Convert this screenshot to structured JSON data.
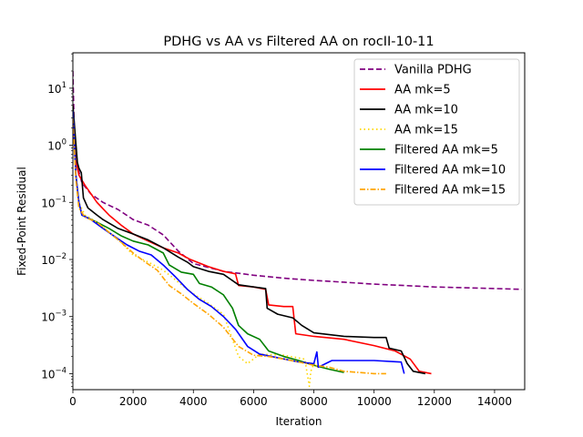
{
  "chart_data": {
    "type": "line",
    "title": "PDHG vs AA vs Filtered AA on rocII-10-11",
    "xlabel": "Iteration",
    "ylabel": "Fixed-Point Residual",
    "xlim": [
      0,
      15000
    ],
    "ylim_log10": [
      -4.28,
      1.62
    ],
    "yscale": "log",
    "x_ticks": [
      0,
      2000,
      4000,
      6000,
      8000,
      10000,
      12000,
      14000
    ],
    "x_tick_labels": [
      "0",
      "2000",
      "4000",
      "6000",
      "8000",
      "10000",
      "12000",
      "14000"
    ],
    "y_ticks_exp": [
      -4,
      -3,
      -2,
      -1,
      0,
      1
    ],
    "y_tick_base": "10",
    "legend_position": "top-right",
    "series": [
      {
        "name": "Vanilla PDHG",
        "color": "#800080",
        "style": "dashed",
        "points": [
          [
            0,
            20
          ],
          [
            50,
            1.5
          ],
          [
            120,
            0.5
          ],
          [
            300,
            0.22
          ],
          [
            600,
            0.14
          ],
          [
            1000,
            0.1
          ],
          [
            1500,
            0.075
          ],
          [
            2000,
            0.05
          ],
          [
            2500,
            0.04
          ],
          [
            3000,
            0.027
          ],
          [
            3500,
            0.014
          ],
          [
            4000,
            0.0085
          ],
          [
            5000,
            0.0062
          ],
          [
            6000,
            0.0053
          ],
          [
            7000,
            0.0047
          ],
          [
            8000,
            0.0043
          ],
          [
            9000,
            0.004
          ],
          [
            10000,
            0.0037
          ],
          [
            11000,
            0.0035
          ],
          [
            12000,
            0.0033
          ],
          [
            13000,
            0.0032
          ],
          [
            14000,
            0.0031
          ],
          [
            14900,
            0.003
          ]
        ]
      },
      {
        "name": "AA mk=5",
        "color": "#ff0000",
        "style": "solid",
        "points": [
          [
            0,
            5
          ],
          [
            80,
            0.6
          ],
          [
            200,
            0.3
          ],
          [
            400,
            0.2
          ],
          [
            800,
            0.1
          ],
          [
            1200,
            0.06
          ],
          [
            1600,
            0.04
          ],
          [
            2000,
            0.028
          ],
          [
            2500,
            0.021
          ],
          [
            3000,
            0.016
          ],
          [
            3500,
            0.013
          ],
          [
            3900,
            0.01
          ],
          [
            4500,
            0.0075
          ],
          [
            5000,
            0.0062
          ],
          [
            5400,
            0.0056
          ],
          [
            5500,
            0.0035
          ],
          [
            6000,
            0.0033
          ],
          [
            6400,
            0.003
          ],
          [
            6500,
            0.0016
          ],
          [
            7000,
            0.0015
          ],
          [
            7300,
            0.0015
          ],
          [
            7400,
            0.0005
          ],
          [
            8000,
            0.00045
          ],
          [
            9000,
            0.0004
          ],
          [
            10000,
            0.00031
          ],
          [
            10700,
            0.00025
          ],
          [
            11200,
            0.00018
          ],
          [
            11500,
            0.00011
          ],
          [
            11900,
            0.0001
          ]
        ]
      },
      {
        "name": "AA mk=10",
        "color": "#000000",
        "style": "solid",
        "points": [
          [
            0,
            5
          ],
          [
            60,
            2
          ],
          [
            150,
            0.5
          ],
          [
            200,
            0.4
          ],
          [
            280,
            0.33
          ],
          [
            350,
            0.12
          ],
          [
            500,
            0.08
          ],
          [
            800,
            0.06
          ],
          [
            1000,
            0.05
          ],
          [
            1500,
            0.035
          ],
          [
            2000,
            0.028
          ],
          [
            2500,
            0.022
          ],
          [
            3000,
            0.016
          ],
          [
            3500,
            0.011
          ],
          [
            3800,
            0.009
          ],
          [
            4000,
            0.0075
          ],
          [
            4500,
            0.0062
          ],
          [
            5000,
            0.0055
          ],
          [
            5500,
            0.0036
          ],
          [
            6000,
            0.0033
          ],
          [
            6400,
            0.0031
          ],
          [
            6450,
            0.0014
          ],
          [
            6800,
            0.0011
          ],
          [
            7300,
            0.00095
          ],
          [
            7600,
            0.0007
          ],
          [
            8000,
            0.00052
          ],
          [
            9000,
            0.00045
          ],
          [
            10000,
            0.00043
          ],
          [
            10400,
            0.00043
          ],
          [
            10500,
            0.00028
          ],
          [
            10900,
            0.00025
          ],
          [
            11100,
            0.00015
          ],
          [
            11300,
            0.00011
          ],
          [
            11700,
            0.0001
          ]
        ]
      },
      {
        "name": "AA mk=15",
        "color": "#ffd700",
        "style": "dotted",
        "points": [
          [
            0,
            3
          ],
          [
            100,
            0.3
          ],
          [
            200,
            0.1
          ],
          [
            400,
            0.06
          ],
          [
            800,
            0.045
          ],
          [
            1200,
            0.03
          ],
          [
            1600,
            0.02
          ],
          [
            2000,
            0.012
          ],
          [
            2500,
            0.009
          ],
          [
            3000,
            0.0065
          ],
          [
            3500,
            0.004
          ],
          [
            4000,
            0.0025
          ],
          [
            4500,
            0.0017
          ],
          [
            5000,
            0.0011
          ],
          [
            5500,
            0.0002
          ],
          [
            5800,
            0.00015
          ],
          [
            6200,
            0.00022
          ],
          [
            7000,
            0.00021
          ],
          [
            7700,
            0.00018
          ],
          [
            7850,
            6e-05
          ],
          [
            7900,
            0.00011
          ],
          [
            8000,
            0.00015
          ],
          [
            8200,
            0.00012
          ]
        ]
      },
      {
        "name": "Filtered AA mk=5",
        "color": "#008000",
        "style": "solid",
        "points": [
          [
            0,
            4
          ],
          [
            100,
            0.3
          ],
          [
            200,
            0.1
          ],
          [
            300,
            0.06
          ],
          [
            800,
            0.045
          ],
          [
            1200,
            0.035
          ],
          [
            1600,
            0.026
          ],
          [
            2000,
            0.021
          ],
          [
            2500,
            0.018
          ],
          [
            3000,
            0.013
          ],
          [
            3200,
            0.008
          ],
          [
            3600,
            0.006
          ],
          [
            4000,
            0.0055
          ],
          [
            4200,
            0.0038
          ],
          [
            4600,
            0.0033
          ],
          [
            5000,
            0.0024
          ],
          [
            5300,
            0.0014
          ],
          [
            5500,
            0.0007
          ],
          [
            5800,
            0.0005
          ],
          [
            6200,
            0.0004
          ],
          [
            6500,
            0.00025
          ],
          [
            7000,
            0.0002
          ],
          [
            7500,
            0.00017
          ],
          [
            8000,
            0.00014
          ],
          [
            8500,
            0.00012
          ],
          [
            9000,
            0.000105
          ]
        ]
      },
      {
        "name": "Filtered AA mk=10",
        "color": "#0000ff",
        "style": "solid",
        "points": [
          [
            0,
            4
          ],
          [
            100,
            0.3
          ],
          [
            200,
            0.1
          ],
          [
            300,
            0.06
          ],
          [
            600,
            0.05
          ],
          [
            1000,
            0.035
          ],
          [
            1400,
            0.025
          ],
          [
            1800,
            0.018
          ],
          [
            2200,
            0.014
          ],
          [
            2600,
            0.012
          ],
          [
            3000,
            0.008
          ],
          [
            3400,
            0.005
          ],
          [
            3800,
            0.003
          ],
          [
            4200,
            0.002
          ],
          [
            4600,
            0.0015
          ],
          [
            5000,
            0.001
          ],
          [
            5400,
            0.0006
          ],
          [
            5800,
            0.0003
          ],
          [
            6200,
            0.00022
          ],
          [
            6800,
            0.00019
          ],
          [
            7500,
            0.00016
          ],
          [
            8000,
            0.00015
          ],
          [
            8100,
            0.00024
          ],
          [
            8150,
            0.00013
          ],
          [
            8600,
            0.00017
          ],
          [
            9000,
            0.00017
          ],
          [
            10000,
            0.00017
          ],
          [
            10900,
            0.00016
          ],
          [
            11000,
            0.0001
          ]
        ]
      },
      {
        "name": "Filtered AA mk=15",
        "color": "#ffa500",
        "style": "dashdot",
        "points": [
          [
            0,
            3
          ],
          [
            100,
            0.25
          ],
          [
            200,
            0.08
          ],
          [
            400,
            0.055
          ],
          [
            800,
            0.045
          ],
          [
            1200,
            0.03
          ],
          [
            1600,
            0.02
          ],
          [
            2000,
            0.013
          ],
          [
            2400,
            0.009
          ],
          [
            2800,
            0.0065
          ],
          [
            3200,
            0.0035
          ],
          [
            3600,
            0.0025
          ],
          [
            4000,
            0.0017
          ],
          [
            4500,
            0.0011
          ],
          [
            5000,
            0.00065
          ],
          [
            5500,
            0.0003
          ],
          [
            6000,
            0.00021
          ],
          [
            6500,
            0.0002
          ],
          [
            7000,
            0.00018
          ],
          [
            7500,
            0.00016
          ],
          [
            8000,
            0.00014
          ],
          [
            8500,
            0.00013
          ],
          [
            9000,
            0.00011
          ],
          [
            9500,
            0.000105
          ],
          [
            10000,
            0.0001
          ],
          [
            10400,
            0.0001
          ]
        ]
      }
    ]
  }
}
